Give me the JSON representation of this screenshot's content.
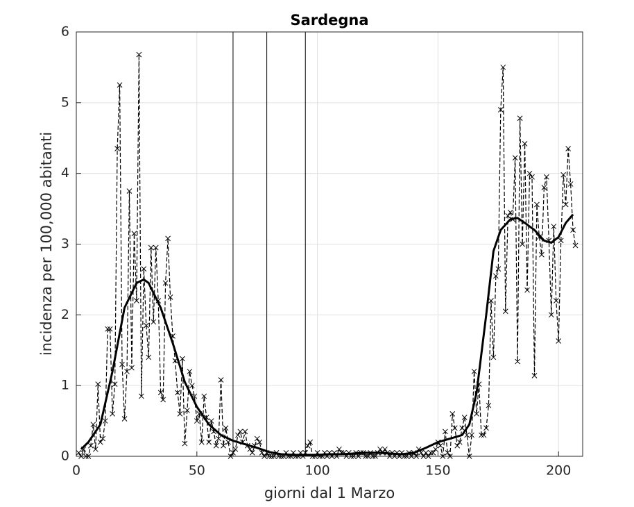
{
  "chart_data": {
    "type": "line",
    "title": "Sardegna",
    "x_label": "giorni dal 1 Marzo",
    "y_label": "incidenza per 100,000 abitanti",
    "xlim": [
      0,
      210
    ],
    "xticks": [
      0,
      50,
      100,
      150,
      200
    ],
    "ylim": [
      0,
      6
    ],
    "yticks": [
      0,
      1,
      2,
      3,
      4,
      5,
      6
    ],
    "grid": true,
    "vlines": [
      65,
      79,
      95
    ],
    "series": [
      {
        "color": "#000000",
        "style": "dashed-x",
        "x": [
          1,
          2,
          3,
          4,
          5,
          6,
          7,
          8,
          9,
          10,
          11,
          12,
          13,
          14,
          15,
          16,
          17,
          18,
          19,
          20,
          21,
          22,
          23,
          24,
          25,
          26,
          27,
          28,
          29,
          30,
          31,
          32,
          33,
          34,
          35,
          36,
          37,
          38,
          39,
          40,
          41,
          42,
          43,
          44,
          45,
          46,
          47,
          48,
          49,
          50,
          51,
          52,
          53,
          54,
          55,
          56,
          57,
          58,
          59,
          60,
          61,
          62,
          63,
          64,
          65,
          66,
          67,
          68,
          69,
          70,
          71,
          72,
          73,
          74,
          75,
          76,
          77,
          78,
          79,
          80,
          81,
          82,
          83,
          84,
          85,
          86,
          87,
          88,
          89,
          90,
          91,
          92,
          93,
          94,
          95,
          96,
          97,
          98,
          99,
          100,
          101,
          102,
          103,
          104,
          105,
          106,
          107,
          108,
          109,
          110,
          111,
          112,
          113,
          114,
          115,
          116,
          117,
          118,
          119,
          120,
          121,
          122,
          123,
          124,
          125,
          126,
          127,
          128,
          129,
          130,
          131,
          132,
          133,
          134,
          135,
          136,
          137,
          138,
          139,
          140,
          141,
          142,
          143,
          144,
          145,
          146,
          147,
          148,
          149,
          150,
          151,
          152,
          153,
          154,
          155,
          156,
          157,
          158,
          159,
          160,
          161,
          162,
          163,
          164,
          165,
          166,
          167,
          168,
          169,
          170,
          171,
          172,
          173,
          174,
          175,
          176,
          177,
          178,
          179,
          180,
          181,
          182,
          183,
          184,
          185,
          186,
          187,
          188,
          189,
          190,
          191,
          192,
          193,
          194,
          195,
          196,
          197,
          198,
          199,
          200,
          201,
          202,
          203,
          204,
          205,
          206,
          207
        ],
        "values": [
          0.05,
          0,
          0.1,
          0,
          0,
          0.15,
          0.45,
          0.1,
          1.02,
          0.2,
          0.25,
          0.5,
          1.8,
          1.8,
          0.6,
          1.02,
          4.35,
          5.25,
          1.3,
          0.53,
          1.2,
          3.75,
          1.25,
          3.15,
          2.2,
          5.68,
          0.85,
          2.65,
          1.85,
          1.4,
          2.95,
          1.9,
          2.95,
          2.2,
          0.9,
          0.8,
          2.45,
          3.08,
          2.25,
          1.7,
          1.35,
          0.9,
          0.6,
          1.38,
          0.18,
          0.65,
          1.2,
          1.0,
          0.85,
          0.5,
          0.6,
          0.2,
          0.85,
          0.55,
          0.2,
          0.5,
          0.35,
          0.15,
          0.25,
          1.08,
          0.15,
          0.4,
          0.2,
          0,
          0.05,
          0.1,
          0.3,
          0.35,
          0.2,
          0.35,
          0.15,
          0.1,
          0.05,
          0.15,
          0.25,
          0.2,
          0.05,
          0,
          0.05,
          0,
          0,
          0,
          0.05,
          0,
          0,
          0,
          0.05,
          0,
          0,
          0.05,
          0,
          0,
          0.05,
          0,
          0.05,
          0.15,
          0.2,
          0,
          0,
          0.05,
          0,
          0,
          0.05,
          0,
          0.05,
          0,
          0.05,
          0,
          0.1,
          0.05,
          0.05,
          0,
          0.05,
          0,
          0,
          0.05,
          0,
          0.05,
          0.05,
          0,
          0,
          0.05,
          0,
          0,
          0.05,
          0.1,
          0.05,
          0.1,
          0.05,
          0,
          0.05,
          0,
          0.05,
          0,
          0.05,
          0,
          0,
          0.05,
          0,
          0.05,
          0,
          0.1,
          0.05,
          0,
          0.05,
          0,
          0.05,
          0.05,
          0.1,
          0.2,
          0.15,
          0,
          0.35,
          0.05,
          0,
          0.6,
          0.4,
          0.15,
          0.2,
          0.4,
          0.55,
          0.3,
          0,
          0.3,
          1.2,
          0.6,
          1.02,
          0.3,
          0.3,
          0.4,
          0.72,
          2.2,
          1.4,
          2.55,
          2.65,
          4.9,
          5.5,
          2.05,
          3.4,
          3.45,
          3.35,
          4.22,
          1.34,
          4.78,
          3.0,
          4.42,
          2.35,
          4.0,
          3.95,
          1.14,
          3.56,
          3.1,
          2.85,
          3.8,
          3.95,
          3.05,
          2.0,
          3.25,
          2.2,
          1.63,
          3.05,
          3.98,
          3.56,
          4.35,
          3.85,
          3.2,
          2.98
        ]
      },
      {
        "color": "#000000",
        "style": "solid",
        "x": [
          2,
          5,
          10,
          15,
          20,
          25,
          28,
          30,
          35,
          40,
          45,
          50,
          55,
          60,
          65,
          70,
          75,
          80,
          85,
          90,
          95,
          100,
          105,
          110,
          115,
          120,
          125,
          130,
          135,
          140,
          145,
          150,
          155,
          160,
          163,
          166,
          170,
          173,
          176,
          180,
          183,
          186,
          190,
          194,
          197,
          200,
          203,
          206
        ],
        "values": [
          0.1,
          0.2,
          0.45,
          1.2,
          2.1,
          2.45,
          2.5,
          2.45,
          2.1,
          1.6,
          1.05,
          0.7,
          0.45,
          0.3,
          0.22,
          0.17,
          0.12,
          0.06,
          0.03,
          0.02,
          0.02,
          0.02,
          0.03,
          0.03,
          0.04,
          0.05,
          0.05,
          0.04,
          0.03,
          0.05,
          0.12,
          0.2,
          0.25,
          0.3,
          0.45,
          0.9,
          2.0,
          2.9,
          3.2,
          3.35,
          3.37,
          3.3,
          3.2,
          3.05,
          3.02,
          3.1,
          3.3,
          3.42
        ]
      }
    ]
  }
}
